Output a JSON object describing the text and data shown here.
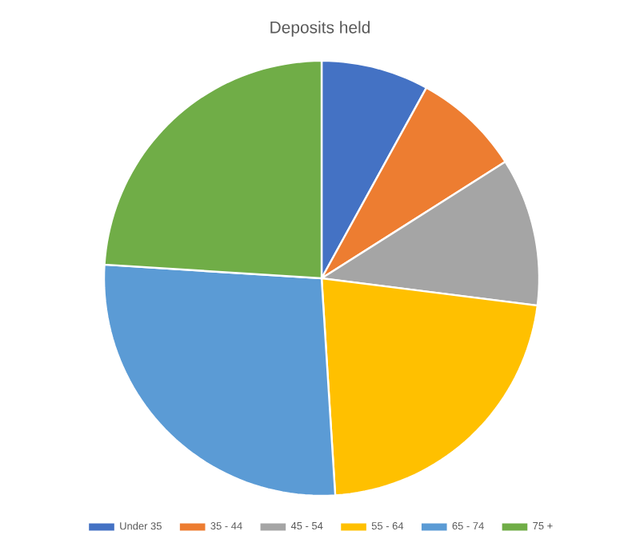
{
  "chart_data": {
    "type": "pie",
    "title": "Deposits held",
    "categories": [
      "Under 35",
      "35 - 44",
      "45 - 54",
      "55 - 64",
      "65 - 74",
      "75 +"
    ],
    "values": [
      8,
      8,
      11,
      22,
      27,
      24
    ],
    "colors": [
      "#4472c4",
      "#ed7d31",
      "#a5a5a5",
      "#ffc000",
      "#5b9bd5",
      "#70ad47"
    ],
    "legend": "bottom"
  }
}
